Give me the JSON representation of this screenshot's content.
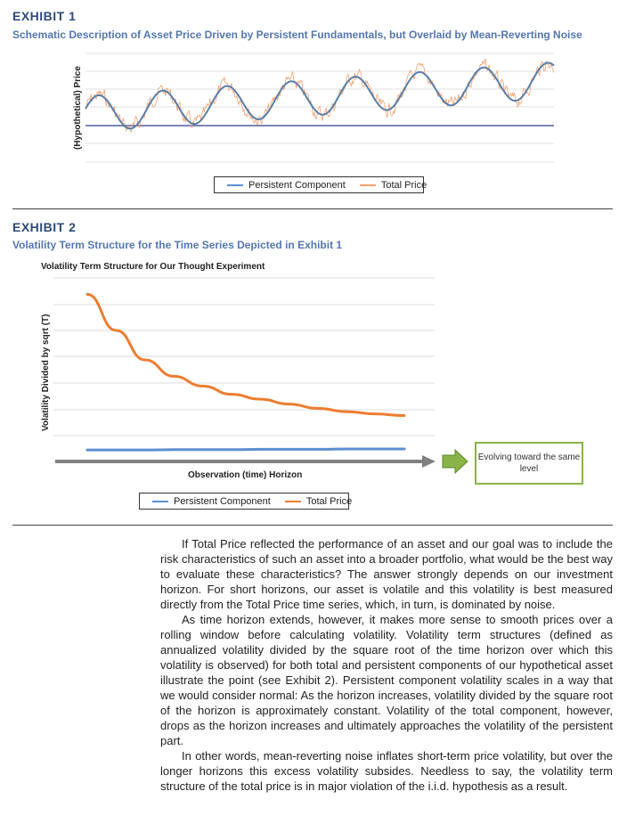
{
  "exhibit1": {
    "label": "EXHIBIT 1",
    "title": "Schematic Description of Asset Price Driven by Persistent Fundamentals, but Overlaid by Mean-Reverting Noise",
    "ylabel": "(Hypothetical) Price"
  },
  "exhibit2": {
    "label": "EXHIBIT 2",
    "title": "Volatility Term Structure for the Time Series Depicted in Exhibit 1",
    "chart_title": "Volatility Term Structure for Our Thought Experiment",
    "ylabel": "Volatility Divided by sqrt (T)",
    "xlabel": "Observation (time) Horizon",
    "callout": "Evolving toward the same level"
  },
  "legend": {
    "persistent": "Persistent Component",
    "total": "Total Price"
  },
  "colors": {
    "persistent": "#5b8fd0",
    "total": "#f0a070",
    "total_vol": "#ed7d31",
    "callout_border": "#8ab34a",
    "heading": "#2e4a7a",
    "subheading": "#5577b0"
  },
  "chart_data": [
    {
      "type": "line",
      "title": "",
      "ylabel": "(Hypothetical) Price",
      "xlabel": "",
      "grid": true,
      "legend": "bottom-center",
      "series": [
        {
          "name": "Persistent Component",
          "description_cycles": 8,
          "trend": "upward sinusoid"
        },
        {
          "name": "Total Price",
          "noise": "mean-reverting, overlaid on persistent component"
        }
      ]
    },
    {
      "type": "line",
      "title": "Volatility Term Structure for Our Thought Experiment",
      "xlabel": "Observation (time) Horizon",
      "ylabel": "Volatility Divided by sqrt (T)",
      "grid": true,
      "legend": "bottom-center",
      "x": [
        1,
        2,
        3,
        4,
        5,
        6,
        7,
        8,
        9,
        10,
        11,
        12
      ],
      "series": [
        {
          "name": "Total Price",
          "values": [
            5.1,
            4.0,
            3.1,
            2.6,
            2.3,
            2.05,
            1.9,
            1.75,
            1.62,
            1.52,
            1.45,
            1.4
          ]
        },
        {
          "name": "Persistent Component",
          "values": [
            0.35,
            0.35,
            0.35,
            0.36,
            0.36,
            0.36,
            0.37,
            0.37,
            0.37,
            0.38,
            0.38,
            0.38
          ]
        }
      ]
    }
  ],
  "body": {
    "p1": "If Total Price reflected the performance of an asset and our goal was to include the risk characteristics of such an asset into a broader portfolio, what would be the best way to evaluate these characteristics? The answer strongly depends on our investment horizon. For short horizons, our asset is volatile and this volatility is best measured directly from the Total Price time series, which, in turn, is dominated by noise.",
    "p2": "As time horizon extends, however, it makes more sense to smooth prices over a rolling window before calculating volatility. Volatility term structures (defined as annualized volatility divided by the square root of the time horizon over which this volatility is observed) for both total and persistent components of our hypothetical asset illustrate the point (see Exhibit 2). Persistent component volatility scales in a way that we would consider normal: As the horizon increases, volatility divided by the square root of the horizon is approximately constant. Volatility of the total component, however, drops as the horizon increases and ultimately approaches the volatility of the persistent part.",
    "p3": "In other words, mean-reverting noise inflates short-term price volatility, but over the longer horizons this excess volatility subsides. Needless to say, the volatility term structure of the total price is in major violation of the i.i.d. hypothesis as a result."
  }
}
